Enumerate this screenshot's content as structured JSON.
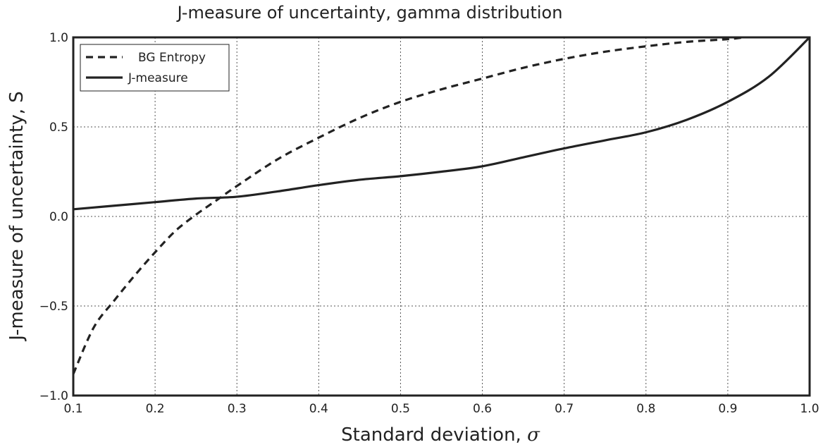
{
  "chart_data": {
    "type": "line",
    "title": "J-measure of uncertainty, gamma distribution",
    "xlabel": "Standard deviation, ",
    "xlabel_symbol": "σ",
    "ylabel": "J-measure of uncertainty, S",
    "xlim": [
      0.1,
      1.0
    ],
    "ylim": [
      -1.0,
      1.0
    ],
    "xticks": [
      "0.1",
      "0.2",
      "0.3",
      "0.4",
      "0.5",
      "0.6",
      "0.7",
      "0.8",
      "0.9",
      "1.0"
    ],
    "yticks": [
      "1.0",
      "0.5",
      "0.0",
      "−0.5",
      "−1.0"
    ],
    "grid": true,
    "legend_position": "top-left",
    "series": [
      {
        "name": "BG Entropy",
        "style": "dashed",
        "color": "#222222",
        "x": [
          0.1,
          0.125,
          0.15,
          0.175,
          0.2,
          0.225,
          0.25,
          0.275,
          0.3,
          0.35,
          0.4,
          0.45,
          0.5,
          0.55,
          0.6,
          0.65,
          0.7,
          0.75,
          0.8,
          0.85,
          0.9,
          0.92
        ],
        "y": [
          -0.88,
          -0.62,
          -0.47,
          -0.33,
          -0.2,
          -0.08,
          0.01,
          0.09,
          0.17,
          0.32,
          0.44,
          0.55,
          0.64,
          0.71,
          0.77,
          0.83,
          0.88,
          0.92,
          0.95,
          0.975,
          0.99,
          1.0
        ]
      },
      {
        "name": "J-measure",
        "style": "solid",
        "color": "#222222",
        "x": [
          0.1,
          0.15,
          0.2,
          0.25,
          0.3,
          0.35,
          0.4,
          0.45,
          0.5,
          0.55,
          0.6,
          0.65,
          0.7,
          0.75,
          0.8,
          0.85,
          0.9,
          0.95,
          1.0
        ],
        "y": [
          0.04,
          0.06,
          0.08,
          0.1,
          0.11,
          0.14,
          0.175,
          0.205,
          0.225,
          0.25,
          0.28,
          0.33,
          0.38,
          0.425,
          0.47,
          0.54,
          0.64,
          0.78,
          1.0
        ]
      }
    ]
  }
}
